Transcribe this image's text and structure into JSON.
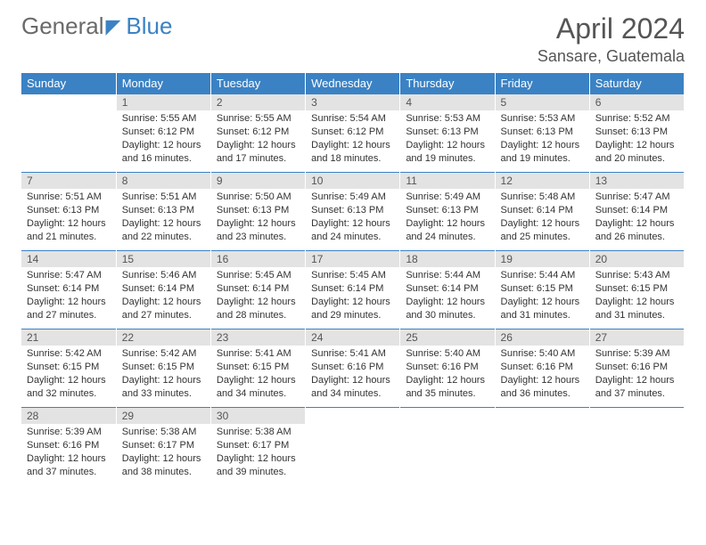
{
  "brand": {
    "part1": "General",
    "part2": "Blue"
  },
  "title": "April 2024",
  "location": "Sansare, Guatemala",
  "header_color": "#3b82c4",
  "day_number_bg": "#e3e3e3",
  "text_color": "#333333",
  "weekdays": [
    "Sunday",
    "Monday",
    "Tuesday",
    "Wednesday",
    "Thursday",
    "Friday",
    "Saturday"
  ],
  "weeks": [
    [
      null,
      {
        "n": "1",
        "sr": "Sunrise: 5:55 AM",
        "ss": "Sunset: 6:12 PM",
        "d1": "Daylight: 12 hours",
        "d2": "and 16 minutes."
      },
      {
        "n": "2",
        "sr": "Sunrise: 5:55 AM",
        "ss": "Sunset: 6:12 PM",
        "d1": "Daylight: 12 hours",
        "d2": "and 17 minutes."
      },
      {
        "n": "3",
        "sr": "Sunrise: 5:54 AM",
        "ss": "Sunset: 6:12 PM",
        "d1": "Daylight: 12 hours",
        "d2": "and 18 minutes."
      },
      {
        "n": "4",
        "sr": "Sunrise: 5:53 AM",
        "ss": "Sunset: 6:13 PM",
        "d1": "Daylight: 12 hours",
        "d2": "and 19 minutes."
      },
      {
        "n": "5",
        "sr": "Sunrise: 5:53 AM",
        "ss": "Sunset: 6:13 PM",
        "d1": "Daylight: 12 hours",
        "d2": "and 19 minutes."
      },
      {
        "n": "6",
        "sr": "Sunrise: 5:52 AM",
        "ss": "Sunset: 6:13 PM",
        "d1": "Daylight: 12 hours",
        "d2": "and 20 minutes."
      }
    ],
    [
      {
        "n": "7",
        "sr": "Sunrise: 5:51 AM",
        "ss": "Sunset: 6:13 PM",
        "d1": "Daylight: 12 hours",
        "d2": "and 21 minutes."
      },
      {
        "n": "8",
        "sr": "Sunrise: 5:51 AM",
        "ss": "Sunset: 6:13 PM",
        "d1": "Daylight: 12 hours",
        "d2": "and 22 minutes."
      },
      {
        "n": "9",
        "sr": "Sunrise: 5:50 AM",
        "ss": "Sunset: 6:13 PM",
        "d1": "Daylight: 12 hours",
        "d2": "and 23 minutes."
      },
      {
        "n": "10",
        "sr": "Sunrise: 5:49 AM",
        "ss": "Sunset: 6:13 PM",
        "d1": "Daylight: 12 hours",
        "d2": "and 24 minutes."
      },
      {
        "n": "11",
        "sr": "Sunrise: 5:49 AM",
        "ss": "Sunset: 6:13 PM",
        "d1": "Daylight: 12 hours",
        "d2": "and 24 minutes."
      },
      {
        "n": "12",
        "sr": "Sunrise: 5:48 AM",
        "ss": "Sunset: 6:14 PM",
        "d1": "Daylight: 12 hours",
        "d2": "and 25 minutes."
      },
      {
        "n": "13",
        "sr": "Sunrise: 5:47 AM",
        "ss": "Sunset: 6:14 PM",
        "d1": "Daylight: 12 hours",
        "d2": "and 26 minutes."
      }
    ],
    [
      {
        "n": "14",
        "sr": "Sunrise: 5:47 AM",
        "ss": "Sunset: 6:14 PM",
        "d1": "Daylight: 12 hours",
        "d2": "and 27 minutes."
      },
      {
        "n": "15",
        "sr": "Sunrise: 5:46 AM",
        "ss": "Sunset: 6:14 PM",
        "d1": "Daylight: 12 hours",
        "d2": "and 27 minutes."
      },
      {
        "n": "16",
        "sr": "Sunrise: 5:45 AM",
        "ss": "Sunset: 6:14 PM",
        "d1": "Daylight: 12 hours",
        "d2": "and 28 minutes."
      },
      {
        "n": "17",
        "sr": "Sunrise: 5:45 AM",
        "ss": "Sunset: 6:14 PM",
        "d1": "Daylight: 12 hours",
        "d2": "and 29 minutes."
      },
      {
        "n": "18",
        "sr": "Sunrise: 5:44 AM",
        "ss": "Sunset: 6:14 PM",
        "d1": "Daylight: 12 hours",
        "d2": "and 30 minutes."
      },
      {
        "n": "19",
        "sr": "Sunrise: 5:44 AM",
        "ss": "Sunset: 6:15 PM",
        "d1": "Daylight: 12 hours",
        "d2": "and 31 minutes."
      },
      {
        "n": "20",
        "sr": "Sunrise: 5:43 AM",
        "ss": "Sunset: 6:15 PM",
        "d1": "Daylight: 12 hours",
        "d2": "and 31 minutes."
      }
    ],
    [
      {
        "n": "21",
        "sr": "Sunrise: 5:42 AM",
        "ss": "Sunset: 6:15 PM",
        "d1": "Daylight: 12 hours",
        "d2": "and 32 minutes."
      },
      {
        "n": "22",
        "sr": "Sunrise: 5:42 AM",
        "ss": "Sunset: 6:15 PM",
        "d1": "Daylight: 12 hours",
        "d2": "and 33 minutes."
      },
      {
        "n": "23",
        "sr": "Sunrise: 5:41 AM",
        "ss": "Sunset: 6:15 PM",
        "d1": "Daylight: 12 hours",
        "d2": "and 34 minutes."
      },
      {
        "n": "24",
        "sr": "Sunrise: 5:41 AM",
        "ss": "Sunset: 6:16 PM",
        "d1": "Daylight: 12 hours",
        "d2": "and 34 minutes."
      },
      {
        "n": "25",
        "sr": "Sunrise: 5:40 AM",
        "ss": "Sunset: 6:16 PM",
        "d1": "Daylight: 12 hours",
        "d2": "and 35 minutes."
      },
      {
        "n": "26",
        "sr": "Sunrise: 5:40 AM",
        "ss": "Sunset: 6:16 PM",
        "d1": "Daylight: 12 hours",
        "d2": "and 36 minutes."
      },
      {
        "n": "27",
        "sr": "Sunrise: 5:39 AM",
        "ss": "Sunset: 6:16 PM",
        "d1": "Daylight: 12 hours",
        "d2": "and 37 minutes."
      }
    ],
    [
      {
        "n": "28",
        "sr": "Sunrise: 5:39 AM",
        "ss": "Sunset: 6:16 PM",
        "d1": "Daylight: 12 hours",
        "d2": "and 37 minutes."
      },
      {
        "n": "29",
        "sr": "Sunrise: 5:38 AM",
        "ss": "Sunset: 6:17 PM",
        "d1": "Daylight: 12 hours",
        "d2": "and 38 minutes."
      },
      {
        "n": "30",
        "sr": "Sunrise: 5:38 AM",
        "ss": "Sunset: 6:17 PM",
        "d1": "Daylight: 12 hours",
        "d2": "and 39 minutes."
      },
      null,
      null,
      null,
      null
    ]
  ]
}
